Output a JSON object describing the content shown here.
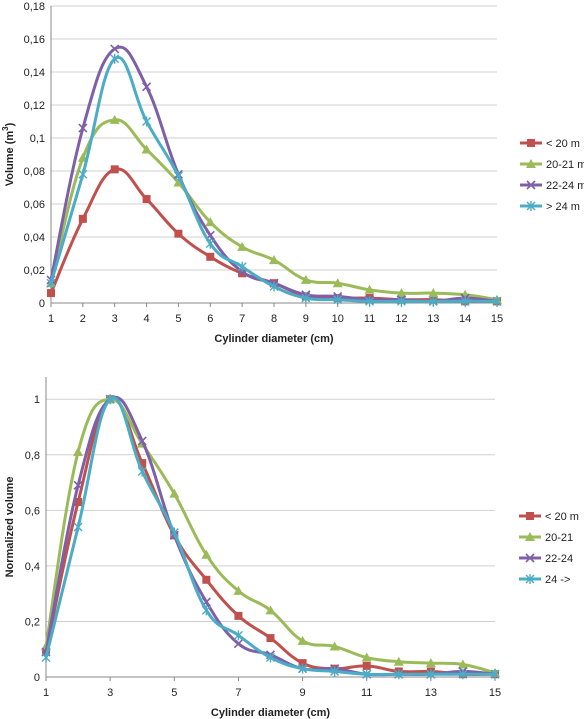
{
  "chart_data": [
    {
      "type": "line",
      "xlabel": "Cylinder diameter (cm)",
      "ylabel_main": "Volume (m",
      "ylabel_sup": "3",
      "ylabel_end": ")",
      "xlim": [
        1,
        15
      ],
      "ylim": [
        0,
        0.18
      ],
      "x": [
        1,
        2,
        3,
        4,
        5,
        6,
        7,
        8,
        9,
        10,
        11,
        12,
        13,
        14,
        15
      ],
      "x_ticks": [
        1,
        2,
        3,
        4,
        5,
        6,
        7,
        8,
        9,
        10,
        11,
        12,
        13,
        14,
        15
      ],
      "x_tick_labels": [
        "1",
        "2",
        "3",
        "4",
        "5",
        "6",
        "7",
        "8",
        "9",
        "10",
        "11",
        "12",
        "13",
        "14",
        "15"
      ],
      "y_ticks": [
        0,
        0.02,
        0.04,
        0.06,
        0.08,
        0.1,
        0.12,
        0.14,
        0.16,
        0.18
      ],
      "y_tick_labels": [
        "0",
        "0,02",
        "0,04",
        "0,06",
        "0,08",
        "0,1",
        "0,12",
        "0,14",
        "0,16",
        "0,18"
      ],
      "grid": "horizontal",
      "legend_position": "right",
      "series": [
        {
          "name": "< 20 m",
          "color": "#c0504d",
          "marker": "square",
          "values": [
            0.006,
            0.051,
            0.081,
            0.063,
            0.042,
            0.028,
            0.018,
            0.012,
            0.004,
            0.003,
            0.003,
            0.002,
            0.002,
            0.001,
            0.001
          ]
        },
        {
          "name": "20-21 m",
          "color": "#9bbb59",
          "marker": "triangle",
          "values": [
            0.012,
            0.088,
            0.111,
            0.093,
            0.073,
            0.049,
            0.034,
            0.026,
            0.014,
            0.012,
            0.008,
            0.006,
            0.006,
            0.005,
            0.002
          ]
        },
        {
          "name": "22-24 m",
          "color": "#7f60a8",
          "marker": "x",
          "values": [
            0.014,
            0.106,
            0.154,
            0.131,
            0.078,
            0.041,
            0.019,
            0.012,
            0.005,
            0.004,
            0.002,
            0.002,
            0.001,
            0.003,
            0.001
          ]
        },
        {
          "name": "> 24 m",
          "color": "#4bacc6",
          "marker": "star",
          "values": [
            0.012,
            0.078,
            0.148,
            0.11,
            0.077,
            0.036,
            0.022,
            0.01,
            0.003,
            0.002,
            0.001,
            0.001,
            0.001,
            0.001,
            0.001
          ]
        }
      ]
    },
    {
      "type": "line",
      "xlabel": "Cylinder diameter (cm)",
      "ylabel": "Normalized volume",
      "xlim": [
        1,
        15
      ],
      "ylim": [
        0,
        1.08
      ],
      "x": [
        1,
        2,
        3,
        4,
        5,
        6,
        7,
        8,
        9,
        10,
        11,
        12,
        13,
        14,
        15
      ],
      "x_ticks": [
        1,
        3,
        5,
        7,
        9,
        11,
        13,
        15
      ],
      "x_tick_labels": [
        "1",
        "3",
        "5",
        "7",
        "9",
        "11",
        "13",
        "15"
      ],
      "y_ticks": [
        0,
        0.2,
        0.4,
        0.6,
        0.8,
        1
      ],
      "y_tick_labels": [
        "0",
        "0,2",
        "0,4",
        "0,6",
        "0,8",
        "1"
      ],
      "grid": "horizontal",
      "legend_position": "right",
      "series": [
        {
          "name": "< 20 m",
          "color": "#c0504d",
          "marker": "square",
          "values": [
            0.09,
            0.63,
            1.0,
            0.77,
            0.51,
            0.35,
            0.22,
            0.14,
            0.05,
            0.03,
            0.04,
            0.02,
            0.02,
            0.01,
            0.01
          ]
        },
        {
          "name": "20-21",
          "color": "#9bbb59",
          "marker": "triangle",
          "values": [
            0.11,
            0.81,
            1.0,
            0.84,
            0.66,
            0.44,
            0.31,
            0.24,
            0.13,
            0.11,
            0.07,
            0.055,
            0.05,
            0.045,
            0.015
          ]
        },
        {
          "name": "22-24",
          "color": "#7f60a8",
          "marker": "x",
          "values": [
            0.09,
            0.69,
            1.0,
            0.85,
            0.51,
            0.27,
            0.12,
            0.08,
            0.03,
            0.03,
            0.01,
            0.01,
            0.01,
            0.02,
            0.01
          ]
        },
        {
          "name": "24 ->",
          "color": "#4bacc6",
          "marker": "star",
          "values": [
            0.07,
            0.54,
            1.0,
            0.74,
            0.52,
            0.24,
            0.15,
            0.07,
            0.03,
            0.02,
            0.01,
            0.01,
            0.01,
            0.01,
            0.01
          ]
        }
      ]
    }
  ]
}
